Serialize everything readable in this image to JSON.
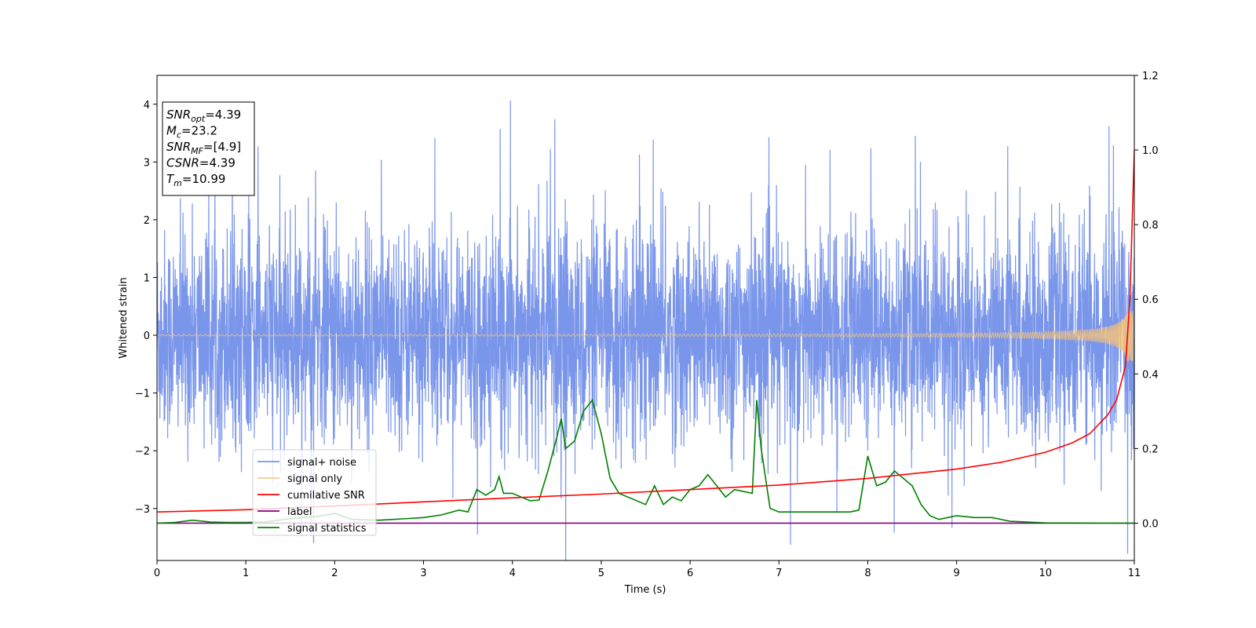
{
  "chart_data": {
    "type": "line",
    "title": "",
    "xlabel": "Time (s)",
    "ylabel": "Whitened strain",
    "xlim": [
      0,
      11
    ],
    "ylim": [
      -3.9,
      4.5
    ],
    "y2lim": [
      -0.1,
      1.2
    ],
    "xticks": [
      "0",
      "1",
      "2",
      "3",
      "4",
      "5",
      "6",
      "7",
      "8",
      "9",
      "10",
      "11"
    ],
    "yticks": [
      "−3",
      "−2",
      "−1",
      "0",
      "1",
      "2",
      "3",
      "4"
    ],
    "y2ticks": [
      "0.0",
      "0.2",
      "0.4",
      "0.6",
      "0.8",
      "1.0",
      "1.2"
    ],
    "legend_position": "lower-left",
    "info_box": {
      "lines": [
        {
          "symbol": "SNR",
          "sub": "opt",
          "value": "=4.39"
        },
        {
          "symbol": "M",
          "sub": "c",
          "value": "=23.2"
        },
        {
          "symbol": "SNR",
          "sub": "MF",
          "value": "=[4.9]"
        },
        {
          "symbol": "CSNR",
          "sub": "",
          "value": "=4.39"
        },
        {
          "symbol": "T",
          "sub": "m",
          "value": "=10.99"
        }
      ]
    },
    "series": [
      {
        "name": "signal+ noise",
        "color": "#4169e1",
        "axis": "left",
        "description_values": {
          "noise_std": 0.9,
          "max_peak": 4.17,
          "min_trough": -3.5
        }
      },
      {
        "name": "signal only",
        "color": "#f4c27a",
        "axis": "left",
        "chirp": {
          "start_amplitude": 0.01,
          "end_amplitude": 0.45,
          "merger_time": 10.99
        }
      },
      {
        "name": "cumilative SNR",
        "color": "#ff0000",
        "axis": "right",
        "x": [
          0,
          1,
          2,
          3,
          4,
          5,
          6,
          7,
          8,
          9,
          9.5,
          10,
          10.3,
          10.5,
          10.7,
          10.8,
          10.9,
          10.95,
          11.0
        ],
        "values": [
          0.03,
          0.036,
          0.046,
          0.057,
          0.068,
          0.078,
          0.09,
          0.102,
          0.12,
          0.145,
          0.163,
          0.19,
          0.215,
          0.24,
          0.29,
          0.33,
          0.42,
          0.6,
          1.0
        ]
      },
      {
        "name": "label",
        "color": "#800080",
        "axis": "right",
        "x": [
          0,
          11
        ],
        "values": [
          0,
          0
        ]
      },
      {
        "name": "signal statistics",
        "color": "#008000",
        "axis": "right",
        "x": [
          0,
          0.2,
          0.4,
          0.6,
          0.8,
          1.0,
          1.2,
          1.5,
          1.8,
          2.0,
          2.2,
          2.5,
          2.8,
          3.0,
          3.2,
          3.4,
          3.5,
          3.6,
          3.7,
          3.8,
          3.85,
          3.9,
          4.0,
          4.1,
          4.2,
          4.3,
          4.4,
          4.5,
          4.55,
          4.6,
          4.7,
          4.8,
          4.9,
          5.0,
          5.1,
          5.2,
          5.3,
          5.4,
          5.5,
          5.6,
          5.7,
          5.8,
          5.9,
          6.0,
          6.1,
          6.2,
          6.3,
          6.4,
          6.5,
          6.6,
          6.7,
          6.75,
          6.8,
          6.9,
          7.0,
          7.2,
          7.4,
          7.6,
          7.8,
          7.9,
          8.0,
          8.1,
          8.2,
          8.3,
          8.4,
          8.5,
          8.6,
          8.7,
          8.8,
          9.0,
          9.2,
          9.4,
          9.6,
          10.0,
          11.0
        ],
        "values": [
          0.0,
          0.002,
          0.008,
          0.003,
          0.002,
          0.002,
          0.003,
          0.012,
          0.018,
          0.026,
          0.01,
          0.008,
          0.012,
          0.015,
          0.022,
          0.035,
          0.03,
          0.09,
          0.075,
          0.09,
          0.125,
          0.08,
          0.08,
          0.07,
          0.06,
          0.062,
          0.14,
          0.23,
          0.28,
          0.2,
          0.22,
          0.3,
          0.33,
          0.24,
          0.12,
          0.08,
          0.07,
          0.06,
          0.05,
          0.1,
          0.05,
          0.07,
          0.06,
          0.09,
          0.1,
          0.13,
          0.1,
          0.07,
          0.09,
          0.085,
          0.08,
          0.33,
          0.2,
          0.04,
          0.03,
          0.03,
          0.03,
          0.03,
          0.03,
          0.035,
          0.18,
          0.1,
          0.11,
          0.14,
          0.12,
          0.1,
          0.05,
          0.02,
          0.01,
          0.02,
          0.015,
          0.015,
          0.005,
          0.001,
          0.0
        ]
      }
    ]
  }
}
